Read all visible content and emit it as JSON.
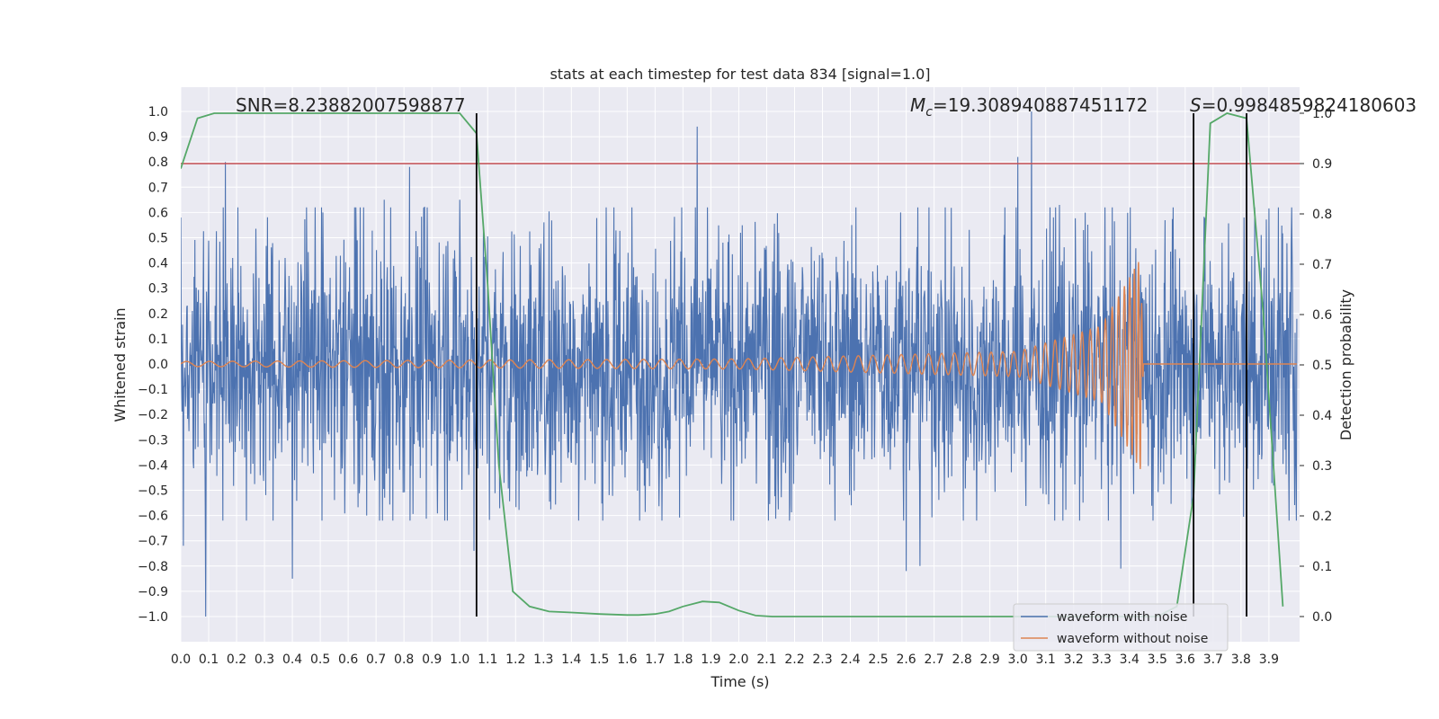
{
  "chart_data": {
    "type": "line",
    "title": "stats at each timestep for test data 834 [signal=1.0]",
    "xlabel": "Time (s)",
    "ylabel": "Whitened strain",
    "y2label": "Detection probability",
    "xlim": [
      0.0,
      4.0
    ],
    "ylim": [
      -1.1,
      1.1
    ],
    "y2lim": [
      -0.05,
      1.0
    ],
    "grid": true,
    "legend_position": "lower-right",
    "x_ticks": [
      "0.0",
      "0.1",
      "0.2",
      "0.3",
      "0.4",
      "0.5",
      "0.6",
      "0.7",
      "0.8",
      "0.9",
      "1.0",
      "1.1",
      "1.2",
      "1.3",
      "1.4",
      "1.5",
      "1.6",
      "1.7",
      "1.8",
      "1.9",
      "2.0",
      "2.1",
      "2.2",
      "2.3",
      "2.4",
      "2.5",
      "2.6",
      "2.7",
      "2.8",
      "2.9",
      "3.0",
      "3.1",
      "3.2",
      "3.3",
      "3.4",
      "3.5",
      "3.6",
      "3.7",
      "3.8",
      "3.9"
    ],
    "y_ticks": [
      "1.0",
      "0.9",
      "0.8",
      "0.7",
      "0.6",
      "0.5",
      "0.4",
      "0.3",
      "0.2",
      "0.1",
      "0.0",
      "−0.1",
      "−0.2",
      "−0.3",
      "−0.4",
      "−0.5",
      "−0.6",
      "−0.7",
      "−0.8",
      "−0.9",
      "−1.0"
    ],
    "y2_ticks": [
      "1.0",
      "0.9",
      "0.8",
      "0.7",
      "0.6",
      "0.5",
      "0.4",
      "0.3",
      "0.2",
      "0.1",
      "0.0"
    ],
    "annotations": {
      "snr": "SNR=8.23882007598877",
      "mc_symbol": "M",
      "mc_sub": "c",
      "mc_value": "=19.308940887451172",
      "s_symbol": "S",
      "s_value": "=0.9984859824180603"
    },
    "threshold_line": {
      "axis": "right",
      "y": 0.9,
      "color": "#c44e52"
    },
    "vertical_lines": [
      1.06,
      3.63,
      3.82
    ],
    "series": [
      {
        "name": "waveform with noise",
        "color": "#4c72b0",
        "envelope_abs": 0.35,
        "peaks": [
          {
            "x": 0.0,
            "y": 0.58
          },
          {
            "x": 0.01,
            "y": -0.72
          },
          {
            "x": 0.09,
            "y": -1.0
          },
          {
            "x": 0.16,
            "y": 0.8
          },
          {
            "x": 0.4,
            "y": -0.85
          },
          {
            "x": 0.51,
            "y": 0.6
          },
          {
            "x": 0.73,
            "y": 0.65
          },
          {
            "x": 0.82,
            "y": 0.78
          },
          {
            "x": 1.0,
            "y": 0.65
          },
          {
            "x": 1.05,
            "y": -0.74
          },
          {
            "x": 1.85,
            "y": 0.94
          },
          {
            "x": 2.58,
            "y": 0.6
          },
          {
            "x": 2.6,
            "y": -0.82
          },
          {
            "x": 2.65,
            "y": -0.8
          },
          {
            "x": 3.0,
            "y": 0.82
          },
          {
            "x": 3.05,
            "y": 1.0
          },
          {
            "x": 3.15,
            "y": 0.63
          },
          {
            "x": 3.37,
            "y": -0.81
          },
          {
            "x": 3.85,
            "y": 0.62
          }
        ]
      },
      {
        "name": "waveform without noise",
        "color": "#dd8452",
        "chirp": [
          {
            "x": 0.0,
            "amp": 0.01
          },
          {
            "x": 2.0,
            "amp": 0.02
          },
          {
            "x": 3.0,
            "amp": 0.05
          },
          {
            "x": 3.3,
            "amp": 0.15
          },
          {
            "x": 3.44,
            "amp": 0.42
          },
          {
            "x": 3.45,
            "amp": 0.0
          }
        ]
      },
      {
        "name": "detection probability",
        "color": "#55a868",
        "axis": "right",
        "x": [
          0.0,
          0.06,
          0.12,
          0.2,
          0.5,
          0.8,
          1.0,
          1.06,
          1.1,
          1.14,
          1.19,
          1.25,
          1.32,
          1.4,
          1.5,
          1.6,
          1.64,
          1.7,
          1.75,
          1.8,
          1.87,
          1.93,
          2.0,
          2.06,
          2.12,
          2.5,
          3.0,
          3.5,
          3.57,
          3.63,
          3.69,
          3.75,
          3.82,
          3.88,
          3.95
        ],
        "values": [
          0.89,
          0.99,
          1.0,
          1.0,
          1.0,
          1.0,
          1.0,
          0.96,
          0.66,
          0.3,
          0.05,
          0.02,
          0.01,
          0.008,
          0.005,
          0.003,
          0.003,
          0.005,
          0.01,
          0.02,
          0.03,
          0.028,
          0.012,
          0.002,
          0.0,
          0.0,
          0.0,
          0.0,
          0.02,
          0.24,
          0.98,
          1.0,
          0.99,
          0.6,
          0.02
        ]
      }
    ]
  }
}
